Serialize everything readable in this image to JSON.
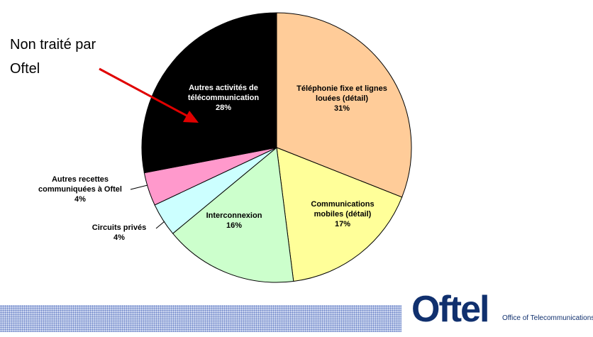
{
  "chart_data": {
    "type": "pie",
    "categories": [
      "Téléphonie fixe et lignes louées (détail)",
      "Communications mobiles (détail)",
      "Interconnexion",
      "Circuits privés",
      "Autres recettes communiquées à Oftel",
      "Autres activités de télécommunication"
    ],
    "values": [
      31,
      17,
      16,
      4,
      4,
      28
    ],
    "value_labels": [
      "31%",
      "17%",
      "16%",
      "4%",
      "4%",
      "28%"
    ],
    "colors": [
      "#ffcc99",
      "#ffff99",
      "#ccffcc",
      "#ccffff",
      "#ff99cc",
      "#000000"
    ],
    "annotation": "Non traité par Oftel"
  },
  "footer": {
    "logo": "Oftel",
    "logo_subtitle": "Office of Telecommunications"
  }
}
